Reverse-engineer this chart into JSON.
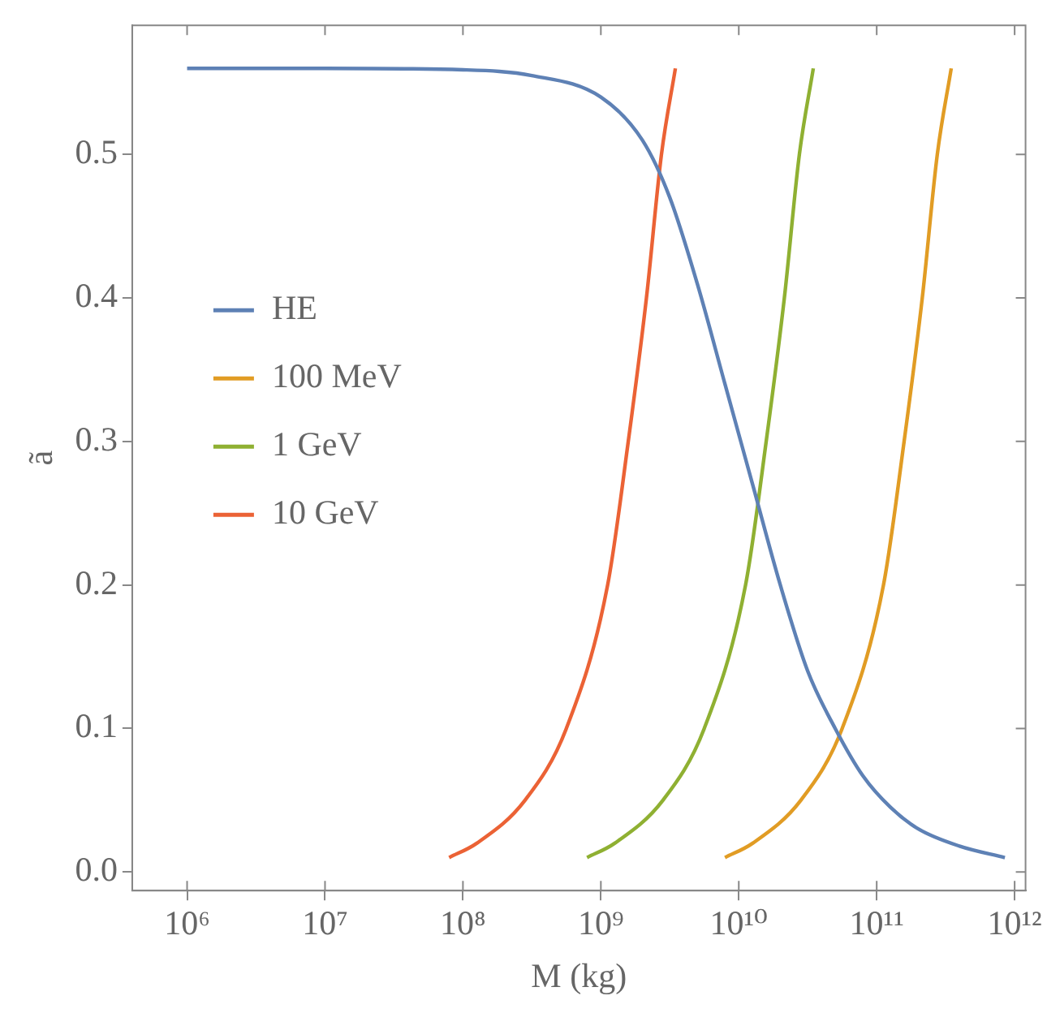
{
  "chart_data": {
    "type": "line",
    "xlabel": "M (kg)",
    "ylabel": "ã",
    "log": "x",
    "grid": false,
    "legend": "left",
    "marker": "none",
    "line_style": "solid",
    "xlim": [
      400000,
      1200000000000
    ],
    "xticks": [
      {
        "value": 1000000,
        "label": "10⁶"
      },
      {
        "value": 10000000,
        "label": "10⁷"
      },
      {
        "value": 100000000,
        "label": "10⁸"
      },
      {
        "value": 1000000000,
        "label": "10⁹"
      },
      {
        "value": 10000000000,
        "label": "10¹⁰"
      },
      {
        "value": 100000000000,
        "label": "10¹¹"
      },
      {
        "value": 1000000000000,
        "label": "10¹²"
      }
    ],
    "ylim": [
      -0.013,
      0.59
    ],
    "yticks": [
      {
        "value": 0,
        "label": "0.0"
      },
      {
        "value": 0.1,
        "label": "0.1"
      },
      {
        "value": 0.2,
        "label": "0.2"
      },
      {
        "value": 0.3,
        "label": "0.3"
      },
      {
        "value": 0.4,
        "label": "0.4"
      },
      {
        "value": 0.5,
        "label": "0.5"
      }
    ],
    "series": [
      {
        "name": "HE",
        "color": "#5e81b5",
        "x": [
          1000000,
          10000000,
          100000000,
          316000000,
          1000000000,
          2000000000,
          3160000000,
          5000000000,
          7940000000,
          12600000000,
          20000000000,
          31600000000,
          50000000000,
          79400000000,
          126000000000,
          200000000000,
          398000000000,
          850000000000
        ],
        "values": [
          0.56,
          0.56,
          0.559,
          0.555,
          0.54,
          0.51,
          0.47,
          0.41,
          0.34,
          0.27,
          0.2,
          0.14,
          0.1,
          0.067,
          0.045,
          0.03,
          0.018,
          0.01
        ]
      },
      {
        "name": "100 MeV",
        "color": "#e19c24",
        "x": [
          7940000000,
          12600000000,
          28200000000,
          56200000000,
          112000000000,
          158000000000,
          214000000000,
          275000000000,
          347000000000
        ],
        "values": [
          0.01,
          0.02,
          0.05,
          0.1,
          0.2,
          0.3,
          0.4,
          0.5,
          0.56
        ]
      },
      {
        "name": "1 GeV",
        "color": "#8fb032",
        "x": [
          794000000,
          1260000000,
          2820000000,
          5620000000,
          11200000000,
          15800000000,
          21400000000,
          27500000000,
          34700000000
        ],
        "values": [
          0.01,
          0.02,
          0.05,
          0.1,
          0.2,
          0.3,
          0.4,
          0.5,
          0.56
        ]
      },
      {
        "name": "10 GeV",
        "color": "#eb6235",
        "x": [
          79400000,
          126000000,
          282000000,
          562000000,
          1120000000,
          1580000000,
          2140000000,
          2750000000,
          3470000000
        ],
        "values": [
          0.01,
          0.02,
          0.05,
          0.1,
          0.2,
          0.3,
          0.4,
          0.5,
          0.56
        ]
      }
    ]
  }
}
